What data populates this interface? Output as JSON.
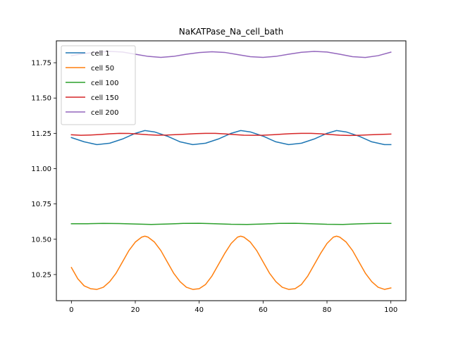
{
  "chart_data": {
    "type": "line",
    "title": "NaKATPase_Na_cell_bath",
    "xlabel": "",
    "ylabel": "",
    "xlim": [
      -4.7,
      104.7
    ],
    "ylim": [
      10.065,
      11.905
    ],
    "xticks": [
      0,
      20,
      40,
      60,
      80,
      100
    ],
    "xtick_labels": [
      "0",
      "20",
      "40",
      "60",
      "80",
      "100"
    ],
    "yticks": [
      10.25,
      10.5,
      10.75,
      11.0,
      11.25,
      11.5,
      11.75
    ],
    "ytick_labels": [
      "10.25",
      "10.50",
      "10.75",
      "11.00",
      "11.25",
      "11.50",
      "11.75"
    ],
    "grid": false,
    "legend": "top-left",
    "series": [
      {
        "name": "cell 1",
        "color": "#1f77b4",
        "x": [
          0,
          4,
          8,
          12,
          16,
          20,
          23,
          26,
          30,
          34,
          38,
          42,
          46,
          50,
          53,
          56,
          60,
          64,
          68,
          72,
          76,
          80,
          83,
          86,
          90,
          94,
          98,
          100
        ],
        "y": [
          11.22,
          11.19,
          11.17,
          11.18,
          11.21,
          11.25,
          11.27,
          11.26,
          11.23,
          11.19,
          11.17,
          11.18,
          11.21,
          11.25,
          11.27,
          11.26,
          11.23,
          11.19,
          11.17,
          11.18,
          11.21,
          11.25,
          11.27,
          11.26,
          11.23,
          11.19,
          11.17,
          11.17
        ]
      },
      {
        "name": "cell 50",
        "color": "#ff7f0e",
        "x": [
          0,
          2,
          4,
          6,
          8,
          10,
          12,
          14,
          16,
          18,
          20,
          22,
          23,
          24,
          26,
          28,
          30,
          32,
          34,
          36,
          38,
          40,
          42,
          44,
          46,
          48,
          50,
          52,
          53,
          54,
          56,
          58,
          60,
          62,
          64,
          66,
          68,
          70,
          72,
          74,
          76,
          78,
          80,
          82,
          83,
          84,
          86,
          88,
          90,
          92,
          94,
          96,
          98,
          100
        ],
        "y": [
          10.3,
          10.22,
          10.17,
          10.15,
          10.145,
          10.16,
          10.2,
          10.26,
          10.34,
          10.42,
          10.48,
          10.515,
          10.522,
          10.515,
          10.48,
          10.42,
          10.34,
          10.26,
          10.2,
          10.16,
          10.145,
          10.15,
          10.18,
          10.24,
          10.32,
          10.4,
          10.47,
          10.515,
          10.522,
          10.515,
          10.48,
          10.42,
          10.34,
          10.26,
          10.2,
          10.16,
          10.145,
          10.15,
          10.18,
          10.24,
          10.32,
          10.4,
          10.47,
          10.515,
          10.522,
          10.515,
          10.48,
          10.42,
          10.34,
          10.26,
          10.2,
          10.16,
          10.145,
          10.155
        ]
      },
      {
        "name": "cell 100",
        "color": "#2ca02c",
        "x": [
          0,
          5,
          10,
          15,
          20,
          25,
          30,
          35,
          40,
          45,
          50,
          55,
          60,
          65,
          70,
          75,
          80,
          85,
          90,
          95,
          100
        ],
        "y": [
          10.61,
          10.61,
          10.612,
          10.611,
          10.608,
          10.605,
          10.608,
          10.612,
          10.613,
          10.61,
          10.606,
          10.605,
          10.608,
          10.612,
          10.613,
          10.61,
          10.606,
          10.605,
          10.609,
          10.612,
          10.612
        ]
      },
      {
        "name": "cell 150",
        "color": "#d62728",
        "x": [
          0,
          3,
          6,
          9,
          12,
          15,
          18,
          21,
          24,
          27,
          30,
          33,
          36,
          39,
          42,
          45,
          48,
          51,
          54,
          57,
          60,
          63,
          66,
          69,
          72,
          75,
          78,
          81,
          84,
          87,
          90,
          93,
          96,
          100
        ],
        "y": [
          11.24,
          11.236,
          11.238,
          11.242,
          11.247,
          11.25,
          11.249,
          11.245,
          11.24,
          11.237,
          11.238,
          11.241,
          11.244,
          11.248,
          11.25,
          11.25,
          11.246,
          11.241,
          11.237,
          11.236,
          11.237,
          11.24,
          11.244,
          11.248,
          11.25,
          11.25,
          11.247,
          11.242,
          11.237,
          11.235,
          11.236,
          11.239,
          11.242,
          11.245
        ]
      },
      {
        "name": "cell 200",
        "color": "#9467bd",
        "x": [
          0,
          4,
          8,
          12,
          16,
          20,
          24,
          28,
          32,
          36,
          40,
          44,
          48,
          52,
          56,
          60,
          64,
          68,
          72,
          76,
          80,
          84,
          88,
          92,
          96,
          100
        ],
        "y": [
          11.8,
          11.815,
          11.825,
          11.83,
          11.826,
          11.81,
          11.795,
          11.788,
          11.795,
          11.81,
          11.822,
          11.828,
          11.823,
          11.808,
          11.793,
          11.788,
          11.795,
          11.81,
          11.824,
          11.83,
          11.826,
          11.81,
          11.793,
          11.787,
          11.8,
          11.825
        ]
      }
    ]
  }
}
